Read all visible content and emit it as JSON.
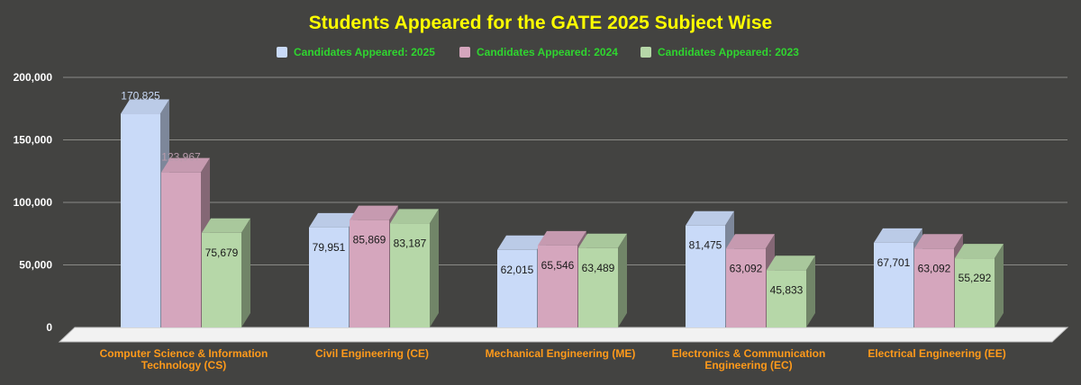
{
  "chart_data": {
    "type": "bar",
    "title": "Students Appeared for the GATE 2025 Subject Wise",
    "xlabel": "",
    "ylabel": "",
    "ylim": [
      0,
      200000
    ],
    "yticks": [
      "0",
      "50,000",
      "100,000",
      "150,000",
      "200,000"
    ],
    "grid": true,
    "legend_position": "top",
    "three_d": true,
    "categories": [
      [
        "Computer Science & Information",
        "Technology (CS)"
      ],
      [
        "Civil Engineering (CE)"
      ],
      [
        "Mechanical Engineering (ME)"
      ],
      [
        "Electronics & Communication",
        "Engineering (EC)"
      ],
      [
        "Electrical Engineering (EE)"
      ]
    ],
    "series": [
      {
        "name": "Candidates Appeared: 2025",
        "values": [
          170825,
          79951,
          62015,
          81475,
          67701
        ],
        "labels": [
          "170,825",
          "79,951",
          "62,015",
          "81,475",
          "67,701"
        ],
        "color": "#c9daf8"
      },
      {
        "name": "Candidates Appeared: 2024",
        "values": [
          123967,
          85869,
          65546,
          63092,
          63092
        ],
        "labels": [
          "123,967",
          "85,869",
          "65,546",
          "63,092",
          "63,092"
        ],
        "color": "#d5a6bd"
      },
      {
        "name": "Candidates Appeared: 2023",
        "values": [
          75679,
          83187,
          63489,
          45833,
          55292
        ],
        "labels": [
          "75,679",
          "83,187",
          "63,489",
          "45,833",
          "55,292"
        ],
        "color": "#b6d7a8"
      }
    ]
  }
}
